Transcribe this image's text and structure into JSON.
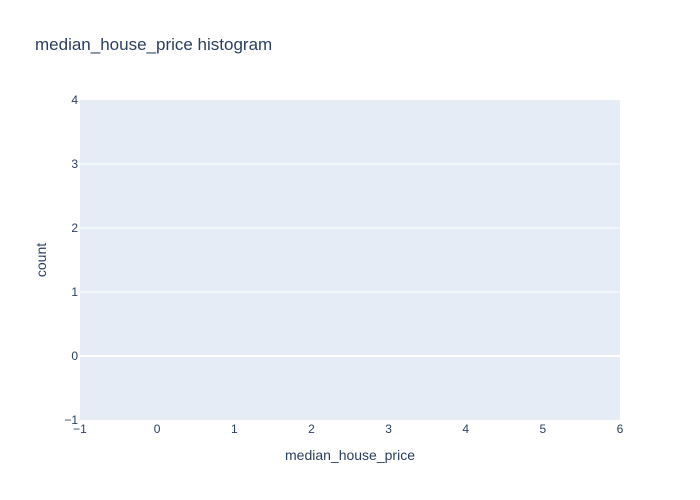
{
  "chart_data": {
    "type": "bar",
    "title": "median_house_price histogram",
    "xlabel": "median_house_price",
    "ylabel": "count",
    "x": [],
    "values": [],
    "xlim": [
      -1,
      6
    ],
    "ylim": [
      -1,
      4
    ],
    "xticks": [
      "−1",
      "0",
      "1",
      "2",
      "3",
      "4",
      "5",
      "6"
    ],
    "yticks": [
      "−1",
      "0",
      "1",
      "2",
      "3",
      "4"
    ],
    "grid": true,
    "colors": {
      "plot_background": "#e5ecf6",
      "gridline": "#ffffff",
      "text": "#2a3f5f"
    }
  }
}
